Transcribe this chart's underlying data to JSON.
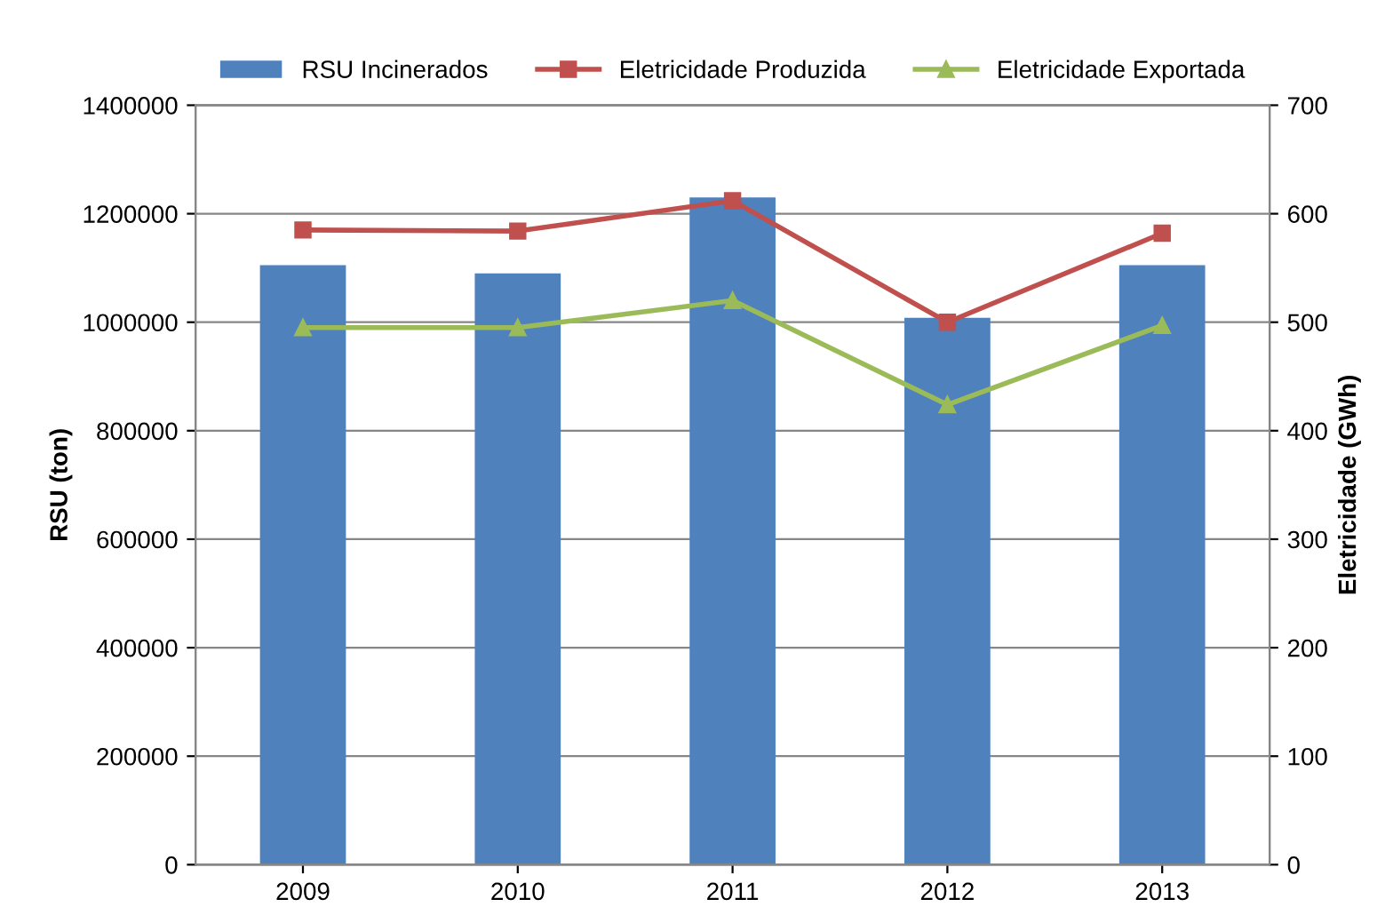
{
  "chart_data": {
    "type": "bar",
    "categories": [
      "2009",
      "2010",
      "2011",
      "2012",
      "2013"
    ],
    "ylabel": "RSU (ton)",
    "y2label": "Eletricidade (GWh)",
    "ylim": [
      0,
      1400000
    ],
    "yticks": [
      0,
      200000,
      400000,
      600000,
      800000,
      1000000,
      1200000,
      1400000
    ],
    "y2lim": [
      0,
      700
    ],
    "y2ticks": [
      0,
      100,
      200,
      300,
      400,
      500,
      600,
      700
    ],
    "grid": "y",
    "legend": "top",
    "series": [
      {
        "name": "RSU Incinerados",
        "color": "#4f81bd",
        "values": [
          1105000,
          1090000,
          1230000,
          1008000,
          1105000
        ]
      },
      {
        "name": "Eletricidade Produzida",
        "type": "line",
        "axis": "y2",
        "marker": "square",
        "color": "#c0504d",
        "values": [
          585,
          584,
          612,
          500,
          582
        ]
      },
      {
        "name": "Eletricidade Exportada",
        "type": "line",
        "axis": "y2",
        "marker": "triangle",
        "color": "#9bbb59",
        "values": [
          495,
          495,
          520,
          424,
          497
        ]
      }
    ]
  }
}
